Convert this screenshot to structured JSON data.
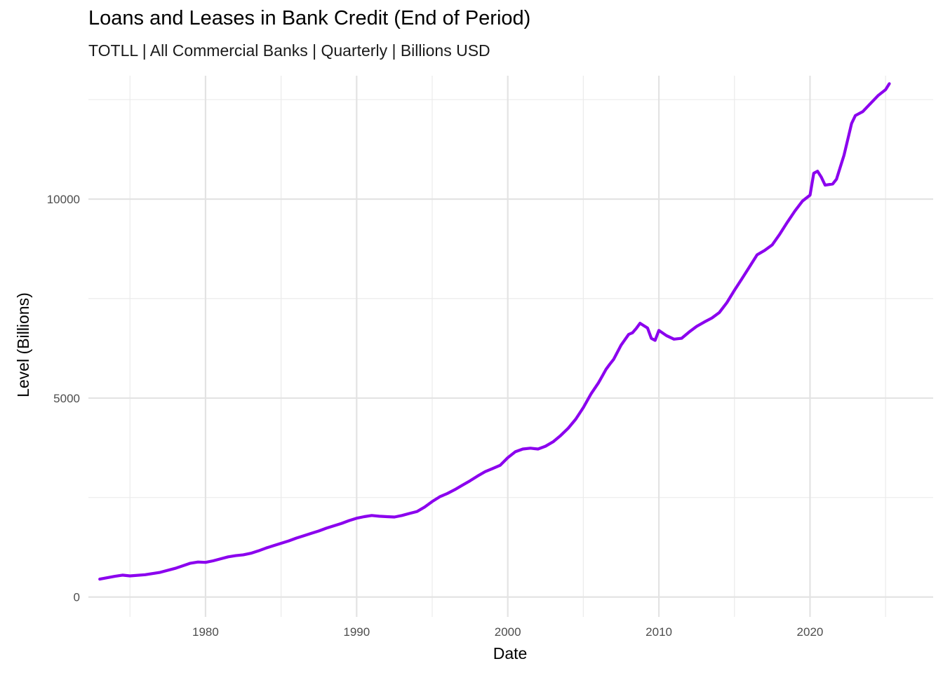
{
  "chart_data": {
    "type": "line",
    "title": "Loans and Leases in Bank Credit (End of Period)",
    "subtitle": "TOTLL | All Commercial Banks | Quarterly | Billions USD",
    "xlabel": "Date",
    "ylabel": "Level (Billions)",
    "x_ticks": [
      "1980",
      "1990",
      "2000",
      "2010",
      "2020"
    ],
    "y_ticks": [
      "0",
      "5000",
      "10000"
    ],
    "xlim": [
      1972.25,
      2028.15
    ],
    "ylim": [
      -500,
      13100
    ],
    "grid": true,
    "line_color": "#8B00EE",
    "series": [
      {
        "x": [
          1973.0,
          1974.0,
          1974.5,
          1975.0,
          1976.0,
          1977.0,
          1978.0,
          1979.0,
          1979.5,
          1980.0,
          1980.5,
          1981.0,
          1981.5,
          1982.0,
          1982.5,
          1983.0,
          1983.5,
          1984.0,
          1984.5,
          1985.0,
          1985.5,
          1986.0,
          1986.5,
          1987.0,
          1987.5,
          1988.0,
          1988.5,
          1989.0,
          1989.5,
          1990.0,
          1990.5,
          1991.0,
          1991.5,
          1992.0,
          1992.5,
          1993.0,
          1993.5,
          1994.0,
          1994.5,
          1995.0,
          1995.5,
          1996.0,
          1996.5,
          1997.0,
          1997.5,
          1998.0,
          1998.5,
          1999.0,
          1999.5,
          2000.0,
          2000.5,
          2001.0,
          2001.5,
          2002.0,
          2002.5,
          2003.0,
          2003.5,
          2004.0,
          2004.5,
          2005.0,
          2005.5,
          2006.0,
          2006.25,
          2006.5,
          2006.75,
          2007.0,
          2007.5,
          2008.0,
          2008.25,
          2008.5,
          2008.75,
          2009.0,
          2009.25,
          2009.5,
          2009.75,
          2010.0,
          2010.5,
          2011.0,
          2011.5,
          2012.0,
          2012.5,
          2013.0,
          2013.5,
          2014.0,
          2014.5,
          2015.0,
          2015.5,
          2016.0,
          2016.5,
          2017.0,
          2017.5,
          2018.0,
          2018.5,
          2019.0,
          2019.5,
          2020.0,
          2020.25,
          2020.5,
          2020.75,
          2021.0,
          2021.5,
          2021.75,
          2022.0,
          2022.25,
          2022.5,
          2022.75,
          2023.0,
          2023.5,
          2024.0,
          2024.5,
          2025.0,
          2025.25
        ],
        "y": [
          450,
          520,
          550,
          530,
          560,
          620,
          720,
          850,
          880,
          870,
          910,
          960,
          1010,
          1040,
          1060,
          1100,
          1160,
          1230,
          1290,
          1350,
          1410,
          1480,
          1540,
          1600,
          1660,
          1730,
          1790,
          1850,
          1920,
          1980,
          2020,
          2050,
          2030,
          2020,
          2010,
          2050,
          2100,
          2150,
          2260,
          2400,
          2520,
          2600,
          2700,
          2810,
          2920,
          3040,
          3150,
          3230,
          3310,
          3500,
          3650,
          3720,
          3740,
          3720,
          3790,
          3900,
          4060,
          4240,
          4470,
          4760,
          5100,
          5380,
          5550,
          5720,
          5850,
          5970,
          6330,
          6600,
          6640,
          6750,
          6880,
          6820,
          6760,
          6500,
          6450,
          6700,
          6570,
          6480,
          6500,
          6660,
          6800,
          6910,
          7010,
          7150,
          7400,
          7710,
          8000,
          8300,
          8600,
          8710,
          8850,
          9120,
          9420,
          9700,
          9950,
          10100,
          10650,
          10700,
          10550,
          10350,
          10380,
          10500,
          10800,
          11100,
          11500,
          11900,
          12100,
          12200,
          12400,
          12600,
          12750,
          12900
        ]
      }
    ]
  }
}
